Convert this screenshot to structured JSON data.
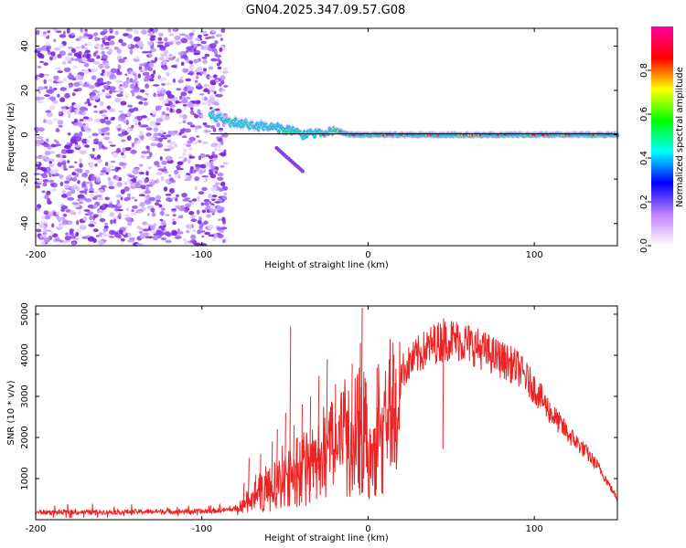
{
  "title": "GN04.2025.347.09.57.G08",
  "chart_data": [
    {
      "type": "heatmap",
      "name": "spectrogram",
      "xlabel": "Height of straight line (km)",
      "ylabel": "Frequency (Hz)",
      "xlim": [
        -200,
        150
      ],
      "ylim": [
        -50,
        48
      ],
      "xticks": [
        -200,
        -100,
        0,
        100
      ],
      "yticks": [
        -40,
        -20,
        0,
        20,
        40
      ],
      "xtick_labels": [
        "-200",
        "-100",
        "0",
        "100"
      ],
      "ytick_labels": [
        "-40",
        "-20",
        "0",
        "20",
        "40"
      ],
      "noise_region_x": [
        -200,
        -85
      ],
      "ridge": {
        "x": [
          -95,
          -85,
          -75,
          -65,
          -55,
          -45,
          -40,
          -35,
          -30,
          -20,
          -10,
          0,
          20,
          50,
          100,
          150
        ],
        "y": [
          9,
          6,
          5,
          4,
          3,
          2,
          0,
          1,
          0,
          2,
          0,
          0,
          0,
          0,
          0,
          0
        ]
      },
      "reference_line_y": 0,
      "colorbar": {
        "label": "Normalized spectral amplitude",
        "ticks": [
          0.0,
          0.2,
          0.4,
          0.6,
          0.8
        ],
        "tick_labels": [
          "0.0",
          "0.2",
          "0.4",
          "0.6",
          "0.8"
        ],
        "range": [
          0,
          1
        ],
        "colors": [
          "#ffffff",
          "#c080ff",
          "#0000ff",
          "#00ffff",
          "#00ff00",
          "#ffff00",
          "#ff0000",
          "#ff00a0"
        ]
      }
    },
    {
      "type": "line",
      "name": "snr",
      "xlabel": "Height of straight line (km)",
      "ylabel": "SNR (10 * v/v)",
      "xlim": [
        -200,
        150
      ],
      "ylim": [
        0,
        5200
      ],
      "xticks": [
        -200,
        -100,
        0,
        100
      ],
      "yticks": [
        1000,
        2000,
        3000,
        4000,
        5000
      ],
      "xtick_labels": [
        "-200",
        "-100",
        "0",
        "100"
      ],
      "ytick_labels": [
        "1000",
        "2000",
        "3000",
        "4000",
        "5000"
      ],
      "color": "#ee2222",
      "envelope": {
        "x": [
          -200,
          -180,
          -150,
          -120,
          -100,
          -90,
          -80,
          -75,
          -70,
          -65,
          -60,
          -55,
          -50,
          -45,
          -40,
          -35,
          -30,
          -25,
          -20,
          -15,
          -10,
          -5,
          0,
          5,
          10,
          15,
          20,
          30,
          40,
          50,
          60,
          70,
          80,
          90,
          100,
          110,
          120,
          130,
          140,
          150
        ],
        "y": [
          180,
          180,
          190,
          200,
          200,
          220,
          260,
          400,
          600,
          800,
          900,
          1000,
          1150,
          1300,
          1500,
          1600,
          1800,
          2100,
          2300,
          2600,
          2700,
          2900,
          2200,
          2800,
          3100,
          3300,
          3600,
          4000,
          4300,
          4400,
          4300,
          4100,
          3900,
          3700,
          3200,
          2600,
          2100,
          1700,
          1200,
          500
        ]
      },
      "spikes": {
        "x": [
          -95,
          -75,
          -72,
          -68,
          -65,
          -62,
          -58,
          -55,
          -52,
          -50,
          -47,
          -45,
          -43,
          -40,
          -35,
          -30,
          -25,
          -20,
          -10,
          -5,
          -4,
          -3,
          5,
          15,
          45
        ],
        "y": [
          350,
          900,
          1500,
          1100,
          1600,
          1300,
          1900,
          2200,
          1800,
          2600,
          4700,
          2300,
          2000,
          2800,
          3000,
          3500,
          3900,
          3300,
          3800,
          4300,
          5150,
          3600,
          3700,
          4000,
          4900
        ]
      }
    }
  ]
}
